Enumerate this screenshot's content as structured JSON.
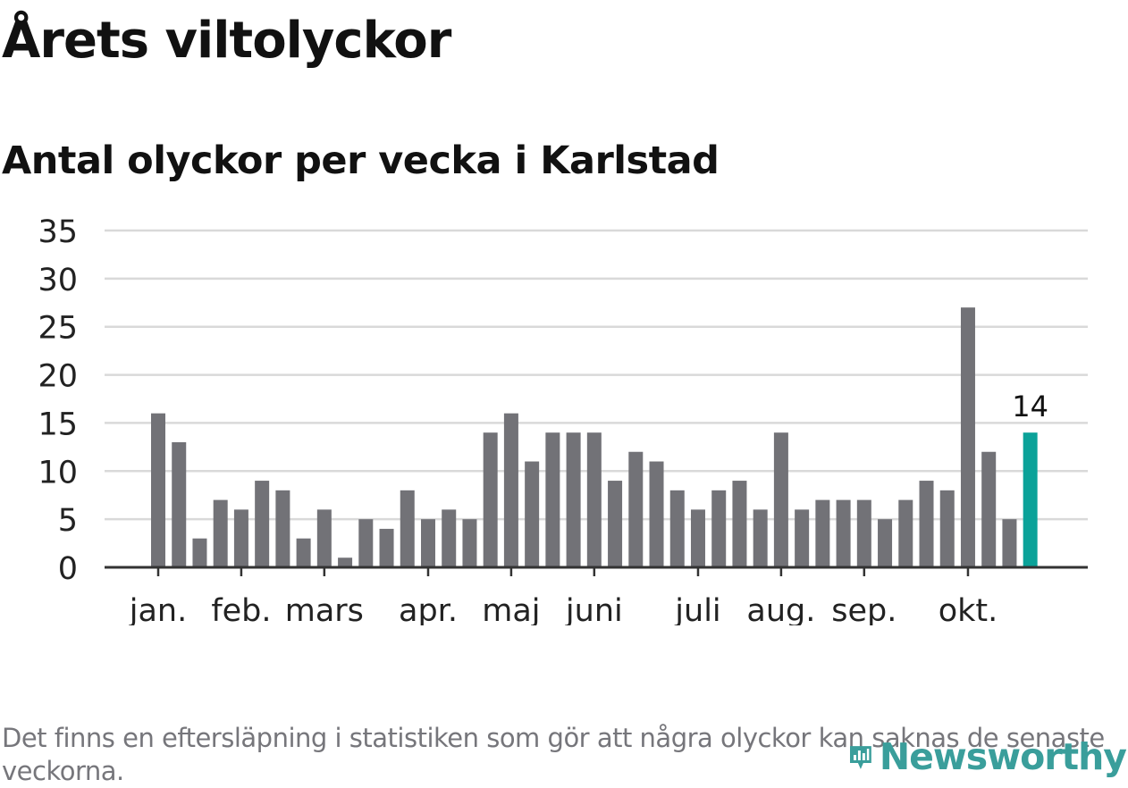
{
  "title": "Årets viltolyckor",
  "subtitle": "Antal olyckor per vecka i Karlstad",
  "footnote": "Det finns en eftersläpning i statistiken som gör att några olyckor kan saknas de senaste veckorna.",
  "brand": {
    "name": "Newsworthy",
    "icon": "newsworthy-logo-icon"
  },
  "colors": {
    "bar": "#727277",
    "highlight": "#0ba299",
    "grid": "#d9d9d9",
    "axis": "#333333",
    "text": "#111111",
    "footnote": "#76767b"
  },
  "chart_data": {
    "type": "bar",
    "title": "Årets viltolyckor",
    "subtitle": "Antal olyckor per vecka i Karlstad",
    "xlabel": "",
    "ylabel": "",
    "ylim": [
      0,
      35
    ],
    "yticks": [
      0,
      5,
      10,
      15,
      20,
      25,
      30,
      35
    ],
    "grid": true,
    "values": [
      16,
      13,
      3,
      7,
      6,
      9,
      8,
      3,
      6,
      1,
      5,
      4,
      8,
      5,
      6,
      5,
      14,
      16,
      11,
      14,
      14,
      14,
      9,
      12,
      11,
      8,
      6,
      8,
      9,
      6,
      14,
      6,
      7,
      7,
      7,
      5,
      7,
      9,
      8,
      27,
      12,
      5,
      14
    ],
    "highlight_index": 42,
    "highlight_label": "14",
    "month_labels": [
      {
        "label": "jan.",
        "index": 0
      },
      {
        "label": "feb.",
        "index": 4
      },
      {
        "label": "mars",
        "index": 8
      },
      {
        "label": "apr.",
        "index": 13
      },
      {
        "label": "maj",
        "index": 17
      },
      {
        "label": "juni",
        "index": 21
      },
      {
        "label": "juli",
        "index": 26
      },
      {
        "label": "aug.",
        "index": 30
      },
      {
        "label": "sep.",
        "index": 34
      },
      {
        "label": "okt.",
        "index": 39
      }
    ]
  }
}
